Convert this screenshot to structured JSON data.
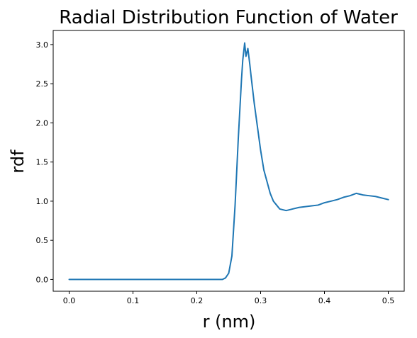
{
  "chart_data": {
    "type": "line",
    "title": "Radial Distribution Function of Water",
    "xlabel": "r (nm)",
    "ylabel": "rdf",
    "xlim": [
      -0.025,
      0.525
    ],
    "ylim": [
      -0.15,
      3.18
    ],
    "x_ticks": [
      0.0,
      0.1,
      0.2,
      0.3,
      0.4,
      0.5
    ],
    "x_tick_labels": [
      "0.0",
      "0.1",
      "0.2",
      "0.3",
      "0.4",
      "0.5"
    ],
    "y_ticks": [
      0.0,
      0.5,
      1.0,
      1.5,
      2.0,
      2.5,
      3.0
    ],
    "y_tick_labels": [
      "0.0",
      "0.5",
      "1.0",
      "1.5",
      "2.0",
      "2.5",
      "3.0"
    ],
    "grid": false,
    "series": [
      {
        "color": "#1f77b4",
        "x": [
          0.0,
          0.05,
          0.1,
          0.15,
          0.2,
          0.24,
          0.245,
          0.25,
          0.255,
          0.26,
          0.265,
          0.27,
          0.272,
          0.275,
          0.277,
          0.28,
          0.283,
          0.285,
          0.29,
          0.295,
          0.3,
          0.305,
          0.31,
          0.315,
          0.32,
          0.325,
          0.33,
          0.34,
          0.35,
          0.36,
          0.37,
          0.38,
          0.39,
          0.4,
          0.41,
          0.42,
          0.43,
          0.44,
          0.45,
          0.46,
          0.47,
          0.48,
          0.49,
          0.5
        ],
        "y": [
          0.0,
          0.0,
          0.0,
          0.0,
          0.0,
          0.0,
          0.02,
          0.08,
          0.3,
          0.95,
          1.8,
          2.55,
          2.8,
          3.02,
          2.85,
          2.95,
          2.75,
          2.6,
          2.25,
          1.95,
          1.65,
          1.4,
          1.25,
          1.1,
          1.0,
          0.95,
          0.9,
          0.88,
          0.9,
          0.92,
          0.93,
          0.94,
          0.95,
          0.98,
          1.0,
          1.02,
          1.05,
          1.07,
          1.1,
          1.08,
          1.07,
          1.06,
          1.04,
          1.02
        ]
      }
    ]
  }
}
